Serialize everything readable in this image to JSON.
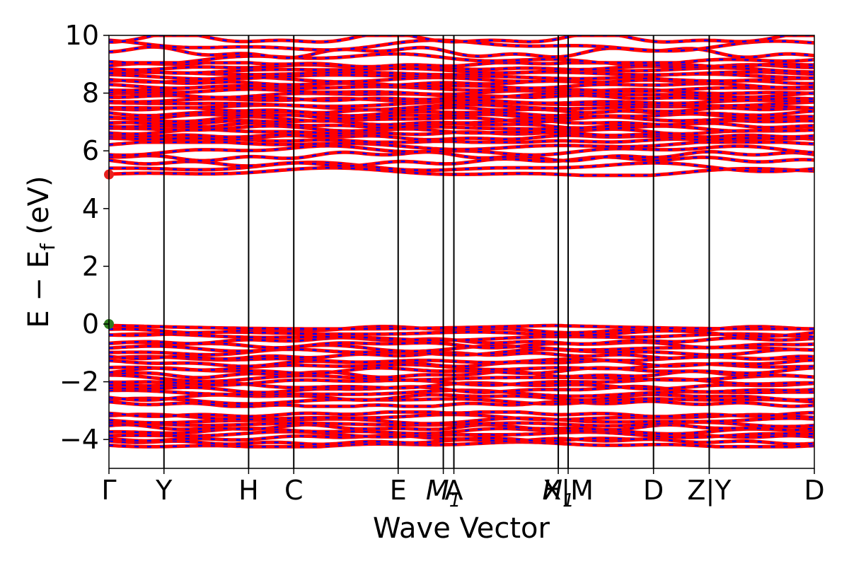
{
  "chart_data": {
    "type": "line",
    "title": "",
    "xlabel": "Wave Vector",
    "ylabel": "E − E",
    "ylabel_sub": "f",
    "ylabel_unit": " (eV)",
    "ylim": [
      -5,
      10
    ],
    "y_ticks": [
      {
        "value": -4,
        "label": "−4"
      },
      {
        "value": -2,
        "label": "−2"
      },
      {
        "value": 0,
        "label": "0"
      },
      {
        "value": 2,
        "label": "2"
      },
      {
        "value": 4,
        "label": "4"
      },
      {
        "value": 6,
        "label": "6"
      },
      {
        "value": 8,
        "label": "8"
      },
      {
        "value": 10,
        "label": "10"
      }
    ],
    "xlim": [
      0,
      1
    ],
    "kpoints": [
      {
        "x": 0.0,
        "label": "Γ",
        "italic": false
      },
      {
        "x": 0.078,
        "label": "Y",
        "italic": false
      },
      {
        "x": 0.198,
        "label": "H",
        "italic": false
      },
      {
        "x": 0.262,
        "label": "C",
        "italic": false
      },
      {
        "x": 0.41,
        "label": "E",
        "italic": false
      },
      {
        "x": 0.474,
        "label": "M",
        "sub": "1",
        "italic": true
      },
      {
        "x": 0.489,
        "label": "A",
        "italic": false
      },
      {
        "x": 0.637,
        "label": "H",
        "sub": "1",
        "italic": true
      },
      {
        "x": 0.651,
        "label": "X|M",
        "italic": false
      },
      {
        "x": 0.772,
        "label": "D",
        "italic": false
      },
      {
        "x": 0.851,
        "label": "Z|Y",
        "italic": false
      },
      {
        "x": 1.0,
        "label": "D",
        "italic": false
      }
    ],
    "band_regions": [
      {
        "name": "valence-lower",
        "min": -4.25,
        "max": -3.05
      },
      {
        "name": "valence-upper",
        "min": -2.85,
        "max": 0.0
      },
      {
        "name": "conduction-lower",
        "min": 5.15,
        "max": 6.3
      },
      {
        "name": "conduction-upper",
        "min": 6.3,
        "max": 9.05
      },
      {
        "name": "conduction-top",
        "min": 9.05,
        "max": 10.0
      }
    ],
    "markers": [
      {
        "name": "cbm",
        "x": 0.0,
        "y": 5.18,
        "color": "#e8201e"
      },
      {
        "name": "vbm",
        "x": 0.0,
        "y": 0.0,
        "color": "#2e7d1f"
      }
    ],
    "series_colors": {
      "primary": "#ff0000",
      "secondary": "#0000ff"
    },
    "grid": false
  }
}
